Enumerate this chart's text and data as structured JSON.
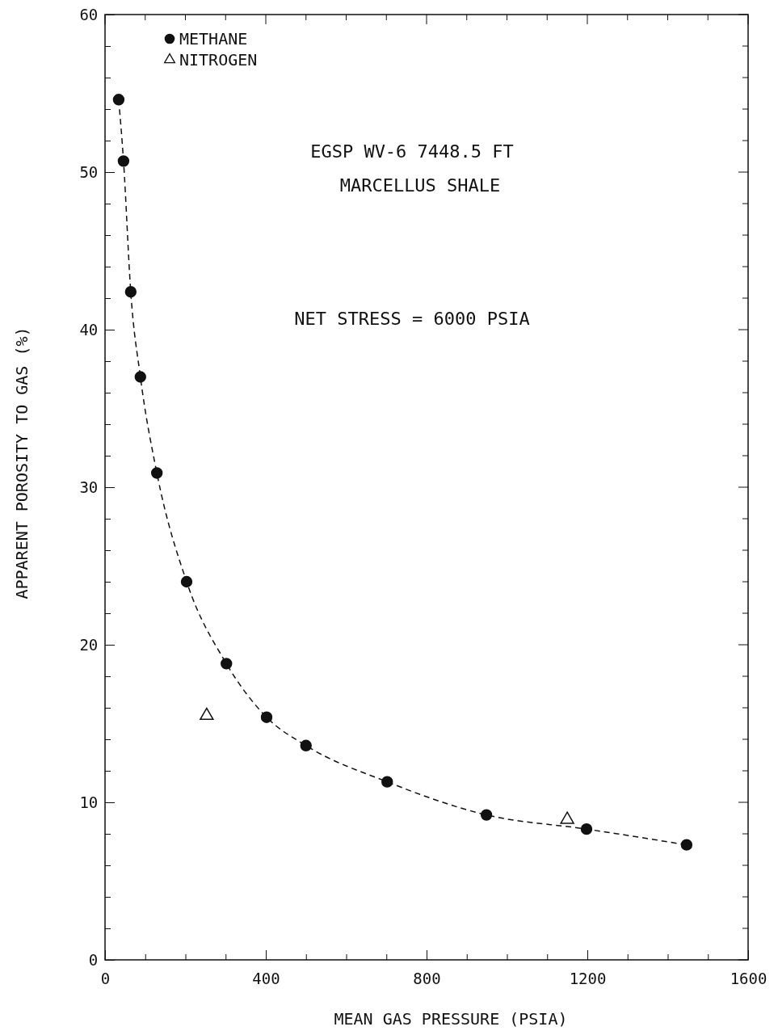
{
  "chart_data": {
    "type": "line",
    "xlabel": "MEAN GAS PRESSURE (PSIA)",
    "ylabel": "APPARENT POROSITY TO GAS (%)",
    "annotations": [
      "EGSP WV-6 7448.5 FT",
      "MARCELLUS SHALE",
      "NET STRESS = 6000 PSIA"
    ],
    "xlim": [
      0,
      1600
    ],
    "ylim": [
      0,
      60
    ],
    "xticks": [
      0,
      {
        "value": 100,
        "label": null
      },
      {
        "value": 200,
        "label": null
      },
      {
        "value": 300,
        "label": null
      },
      400,
      {
        "value": 500,
        "label": null
      },
      {
        "value": 600,
        "label": null
      },
      {
        "value": 700,
        "label": null
      },
      800,
      {
        "value": 900,
        "label": null
      },
      {
        "value": 1000,
        "label": null
      },
      {
        "value": 1100,
        "label": null
      },
      1200,
      {
        "value": 1300,
        "label": null
      },
      {
        "value": 1400,
        "label": null
      },
      {
        "value": 1500,
        "label": null
      },
      1600
    ],
    "yticks": [
      0,
      {
        "value": 2,
        "label": null
      },
      {
        "value": 4,
        "label": null
      },
      {
        "value": 6,
        "label": null
      },
      {
        "value": 8,
        "label": null
      },
      10,
      {
        "value": 12,
        "label": null
      },
      {
        "value": 14,
        "label": null
      },
      {
        "value": 16,
        "label": null
      },
      {
        "value": 18,
        "label": null
      },
      20,
      {
        "value": 22,
        "label": null
      },
      {
        "value": 24,
        "label": null
      },
      {
        "value": 26,
        "label": null
      },
      {
        "value": 28,
        "label": null
      },
      30,
      {
        "value": 32,
        "label": null
      },
      {
        "value": 34,
        "label": null
      },
      {
        "value": 36,
        "label": null
      },
      {
        "value": 38,
        "label": null
      },
      40,
      {
        "value": 42,
        "label": null
      },
      {
        "value": 44,
        "label": null
      },
      {
        "value": 46,
        "label": null
      },
      {
        "value": 48,
        "label": null
      },
      50,
      {
        "value": 52,
        "label": null
      },
      {
        "value": 54,
        "label": null
      },
      {
        "value": 56,
        "label": null
      },
      {
        "value": 58,
        "label": null
      },
      60
    ],
    "grid": false,
    "legend": "top left",
    "series": [
      {
        "name": "METHANE",
        "color": "#111111",
        "marker": "circle",
        "line_style": "dashed",
        "x": [
          34,
          46,
          64,
          88,
          129,
          203,
          302,
          402,
          500,
          702,
          949,
          1198,
          1447
        ],
        "values": [
          54.6,
          50.7,
          42.4,
          37.0,
          30.9,
          24.0,
          18.8,
          15.4,
          13.6,
          11.3,
          9.2,
          8.3,
          7.3
        ]
      },
      {
        "name": "NITROGEN",
        "type": "scatter",
        "color": "#111111",
        "marker": "triangle",
        "x": [
          253,
          1150
        ],
        "values": [
          15.5,
          8.9
        ]
      }
    ]
  }
}
